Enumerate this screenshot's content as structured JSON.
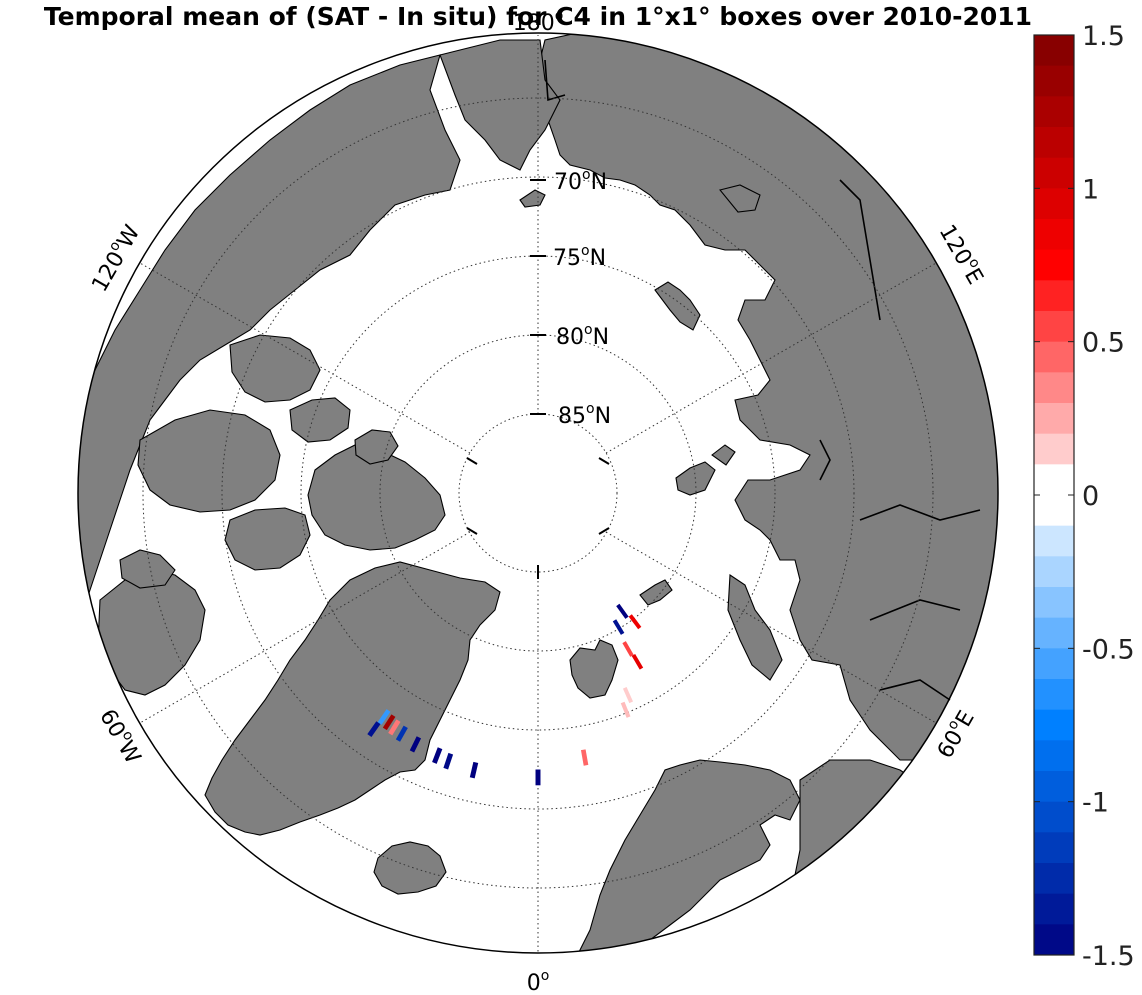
{
  "title": "Temporal mean of (SAT - In situ) for C4 in 1°x1° boxes over 2010-2011",
  "map": {
    "projection": "north-polar-stereographic",
    "land_color": "#808080",
    "ocean_color": "#ffffff",
    "latitude_labels": [
      {
        "lat": 70,
        "text": "70",
        "sup": "o",
        "suffix": "N"
      },
      {
        "lat": 75,
        "text": "75",
        "sup": "o",
        "suffix": "N"
      },
      {
        "lat": 80,
        "text": "80",
        "sup": "o",
        "suffix": "N"
      },
      {
        "lat": 85,
        "text": "85",
        "sup": "o",
        "suffix": "N"
      }
    ],
    "longitude_labels": [
      {
        "lon": 180,
        "text": "180",
        "sup": "o",
        "suffix": ""
      },
      {
        "lon": 120,
        "text": "120",
        "sup": "o",
        "suffix": "E"
      },
      {
        "lon": 60,
        "text": "60",
        "sup": "o",
        "suffix": "E"
      },
      {
        "lon": 0,
        "text": "0",
        "sup": "o",
        "suffix": ""
      },
      {
        "lon": -60,
        "text": "60",
        "sup": "o",
        "suffix": "W"
      },
      {
        "lon": -120,
        "text": "120",
        "sup": "o",
        "suffix": "W"
      }
    ],
    "data_boxes": [
      {
        "lat": 80.8,
        "lon": 35.5,
        "value": -1.5
      },
      {
        "lat": 80.1,
        "lon": 31.0,
        "value": -1.4
      },
      {
        "lat": 79.8,
        "lon": 37.0,
        "value": 0.85
      },
      {
        "lat": 78.6,
        "lon": 30.0,
        "value": 0.55
      },
      {
        "lat": 77.6,
        "lon": 30.5,
        "value": 0.9
      },
      {
        "lat": 76.0,
        "lon": 24.0,
        "value": 0.15
      },
      {
        "lat": 75.2,
        "lon": 22.0,
        "value": 0.2
      },
      {
        "lat": 73.0,
        "lon": 10.0,
        "value": 0.45
      },
      {
        "lat": 72.0,
        "lon": 0.0,
        "value": -1.5
      },
      {
        "lat": 72.0,
        "lon": -13.0,
        "value": -1.5
      },
      {
        "lat": 72.1,
        "lon": -18.5,
        "value": -1.45
      },
      {
        "lat": 72.2,
        "lon": -21.0,
        "value": -1.5
      },
      {
        "lat": 72.3,
        "lon": -26.0,
        "value": -1.5
      },
      {
        "lat": 72.5,
        "lon": -29.5,
        "value": -1.2
      },
      {
        "lat": 72.6,
        "lon": -31.5,
        "value": 0.4
      },
      {
        "lat": 72.7,
        "lon": -33.0,
        "value": 1.3
      },
      {
        "lat": 72.8,
        "lon": -34.5,
        "value": -0.6
      },
      {
        "lat": 71.8,
        "lon": -34.8,
        "value": -1.4
      }
    ]
  },
  "colorbar": {
    "min": -1.5,
    "max": 1.5,
    "steps": 30,
    "tick_labels": [
      "1.5",
      "1",
      "0.5",
      "0",
      "-0.5",
      "-1",
      "-1.5"
    ],
    "tick_values": [
      1.5,
      1,
      0.5,
      0,
      -0.5,
      -1,
      -1.5
    ]
  }
}
